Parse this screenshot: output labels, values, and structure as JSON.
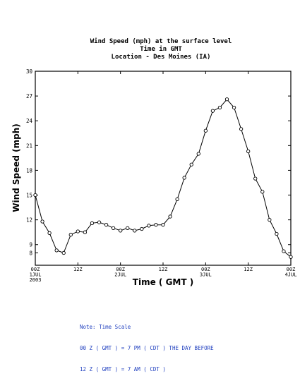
{
  "chart_data": {
    "type": "line",
    "title": "Wind Speed (mph) at the surface level",
    "subtitle_lines": [
      "Time in GMT",
      "Location - Des Moines (IA)"
    ],
    "xlabel": "Time ( GMT )",
    "ylabel": "Wind Speed (mph)",
    "ylim": [
      6.5,
      30
    ],
    "xlim": [
      0,
      72
    ],
    "y_ticks": [
      8,
      9,
      12,
      15,
      18,
      21,
      24,
      27,
      30
    ],
    "x_ticks": [
      {
        "x": 0,
        "lines": [
          "00Z",
          "1JUL",
          "2003"
        ]
      },
      {
        "x": 12,
        "lines": [
          "12Z"
        ]
      },
      {
        "x": 24,
        "lines": [
          "00Z",
          "2JUL"
        ]
      },
      {
        "x": 36,
        "lines": [
          "12Z"
        ]
      },
      {
        "x": 48,
        "lines": [
          "00Z",
          "3JUL"
        ]
      },
      {
        "x": 60,
        "lines": [
          "12Z"
        ]
      },
      {
        "x": 72,
        "lines": [
          "00Z",
          "4JUL"
        ]
      }
    ],
    "grid": false,
    "marker_color": "#ffffff",
    "line_color": "#000000",
    "series": [
      {
        "x": [
          0,
          2,
          4,
          6,
          8,
          10,
          12,
          14,
          16,
          18,
          20,
          22,
          24,
          26,
          28,
          30,
          32,
          34,
          36,
          38,
          40,
          42,
          44,
          46,
          48,
          50,
          52,
          54,
          56,
          58,
          60,
          62,
          64,
          66,
          68,
          70,
          72
        ],
        "values": [
          15.0,
          11.8,
          10.4,
          8.3,
          8.0,
          10.2,
          10.6,
          10.5,
          11.6,
          11.7,
          11.4,
          11.0,
          10.7,
          11.0,
          10.7,
          10.9,
          11.3,
          11.4,
          11.4,
          12.4,
          14.5,
          17.1,
          18.7,
          20.0,
          22.8,
          25.2,
          25.6,
          26.6,
          25.6,
          23.0,
          20.3,
          17.0,
          15.4,
          12.0,
          10.3,
          8.2,
          7.5
        ]
      }
    ]
  },
  "note": {
    "lines": [
      "Note: Time Scale",
      "00 Z ( GMT ) = 7 PM ( CDT ) THE DAY BEFORE",
      "12 Z ( GMT ) = 7 AM ( CDT )"
    ]
  }
}
